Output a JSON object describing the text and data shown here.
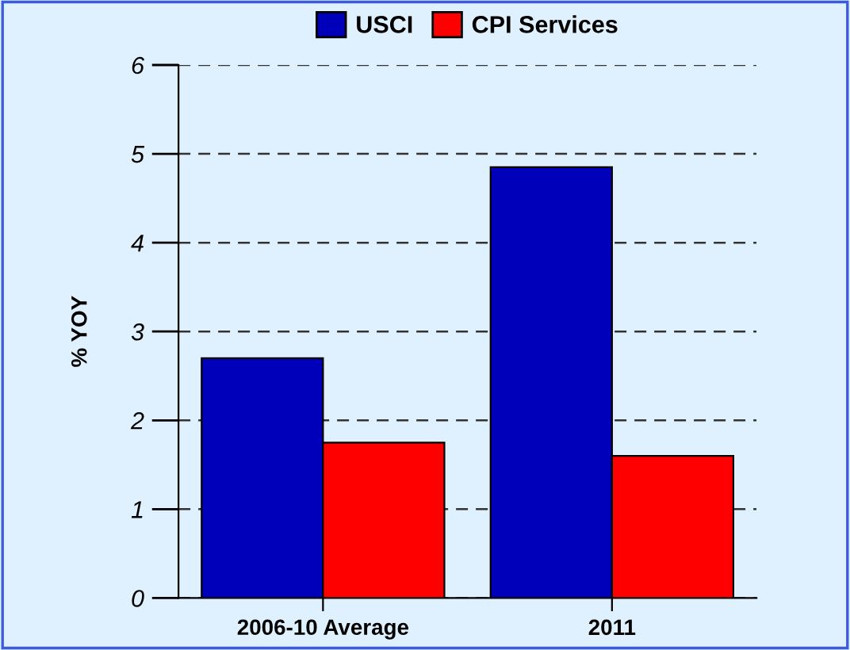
{
  "chart_data": {
    "type": "bar",
    "ylabel": "% YOY",
    "categories": [
      "2006-10 Average",
      "2011"
    ],
    "series": [
      {
        "name": "USCI",
        "color": "#0000bb",
        "values": [
          2.7,
          4.85
        ]
      },
      {
        "name": "CPI Services",
        "color": "#ff0000",
        "values": [
          1.75,
          1.6
        ]
      }
    ],
    "ylim": [
      0,
      6
    ],
    "yticks": [
      0,
      1,
      2,
      3,
      4,
      5,
      6
    ],
    "grid": "y",
    "legend": "top"
  }
}
